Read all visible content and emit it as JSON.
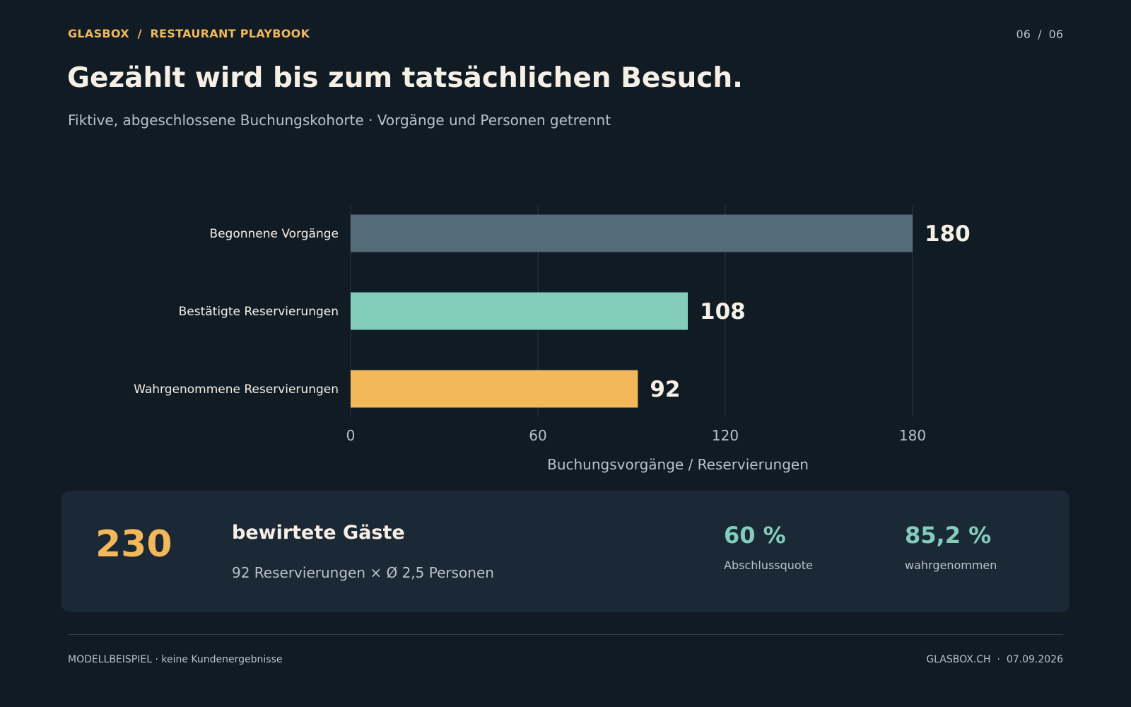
{
  "header": {
    "breadcrumb": "GLASBOX  /  RESTAURANT PLAYBOOK",
    "page_counter": "06  /  06"
  },
  "title": "Gezählt wird bis zum tatsächlichen Besuch.",
  "subtitle": "Fiktive, abgeschlossene Buchungskohorte · Vorgänge und Personen getrennt",
  "chart_data": {
    "type": "bar",
    "orientation": "horizontal",
    "categories": [
      "Begonnene Vorgänge",
      "Bestätigte Reservierungen",
      "Wahrgenommene Reservierungen"
    ],
    "values": [
      180,
      108,
      92
    ],
    "value_labels": [
      "180",
      "108",
      "92"
    ],
    "colors": [
      "#546b79",
      "#84cdbd",
      "#f2b85a"
    ],
    "xlabel": "Buchungsvorgänge / Reservierungen",
    "xlim": [
      0,
      180
    ],
    "xticks": [
      0,
      60,
      120,
      180
    ],
    "xtick_labels": [
      "0",
      "60",
      "120",
      "180"
    ],
    "grid": "vertical"
  },
  "kpi": {
    "guests_value": "230",
    "guests_label": "bewirtete Gäste",
    "guests_detail": "92 Reservierungen × Ø 2,5 Personen",
    "metrics": [
      {
        "value": "60 %",
        "label": "Abschlussquote"
      },
      {
        "value": "85,2 %",
        "label": "wahrgenommen"
      }
    ]
  },
  "footer": {
    "left": "MODELLBEISPIEL · keine Kundenergebnisse",
    "right": "GLASBOX.CH  ·  07.09.2026"
  },
  "colors": {
    "background": "#111b24",
    "card": "#1b2836",
    "accent_orange": "#f2b85a",
    "accent_teal": "#84cdbd",
    "bar_slate": "#546b79",
    "text_primary": "#f5efe6",
    "text_muted": "#b8c2cb"
  }
}
